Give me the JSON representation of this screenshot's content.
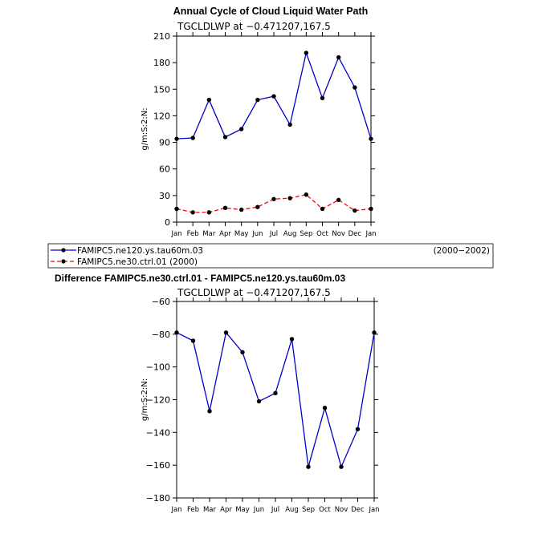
{
  "chart_data": [
    {
      "type": "line",
      "title": "Annual Cycle of Cloud Liquid Water Path",
      "subtitle": "TGCLDLWP at −0.471207,167.5",
      "ylabel": "g/m:S:2:N:",
      "xlabel": "",
      "categories": [
        "Jan",
        "Feb",
        "Mar",
        "Apr",
        "May",
        "Jun",
        "Jul",
        "Aug",
        "Sep",
        "Oct",
        "Nov",
        "Dec",
        "Jan"
      ],
      "ylim": [
        0,
        210
      ],
      "yticks": [
        0,
        30,
        60,
        90,
        120,
        150,
        180,
        210
      ],
      "grid": false,
      "series": [
        {
          "name": "FAMIPC5.ne120.ys.tau60m.03",
          "period": "(2000−2002)",
          "color": "#0000cc",
          "dash": "solid",
          "values": [
            94,
            95,
            138,
            96,
            105,
            138,
            142,
            110,
            191,
            140,
            186,
            152,
            94
          ]
        },
        {
          "name": "FAMIPC5.ne30.ctrl.01",
          "period": "(2000)",
          "color": "#ff0000",
          "dash": "dashed",
          "values": [
            15,
            11,
            11,
            16,
            14,
            17,
            26,
            27,
            31,
            15,
            25,
            13,
            15
          ]
        }
      ]
    },
    {
      "type": "line",
      "title": "Difference FAMIPC5.ne30.ctrl.01 - FAMIPC5.ne120.ys.tau60m.03",
      "subtitle": "TGCLDLWP at −0.471207,167.5",
      "ylabel": "g/m:S:2:N:",
      "xlabel": "",
      "categories": [
        "Jan",
        "Feb",
        "Mar",
        "Apr",
        "May",
        "Jun",
        "Jul",
        "Aug",
        "Sep",
        "Oct",
        "Nov",
        "Dec",
        "Jan"
      ],
      "ylim": [
        -180,
        -60
      ],
      "yticks": [
        -180,
        -160,
        -140,
        -120,
        -100,
        -80,
        -60
      ],
      "ytick_labels": [
        "−180",
        "−160",
        "−140",
        "−120",
        "−100",
        "−80",
        "−60"
      ],
      "grid": false,
      "series": [
        {
          "color": "#0000cc",
          "dash": "solid",
          "values": [
            -79,
            -84,
            -127,
            -79,
            -91,
            -121,
            -116,
            -83,
            -161,
            -125,
            -161,
            -138,
            -79
          ]
        }
      ]
    }
  ],
  "legend": {
    "entries": [
      {
        "label": "FAMIPC5.ne120.ys.tau60m.03",
        "period": "(2000−2002)"
      },
      {
        "label": "FAMIPC5.ne30.ctrl.01 (2000)",
        "period": ""
      }
    ]
  }
}
